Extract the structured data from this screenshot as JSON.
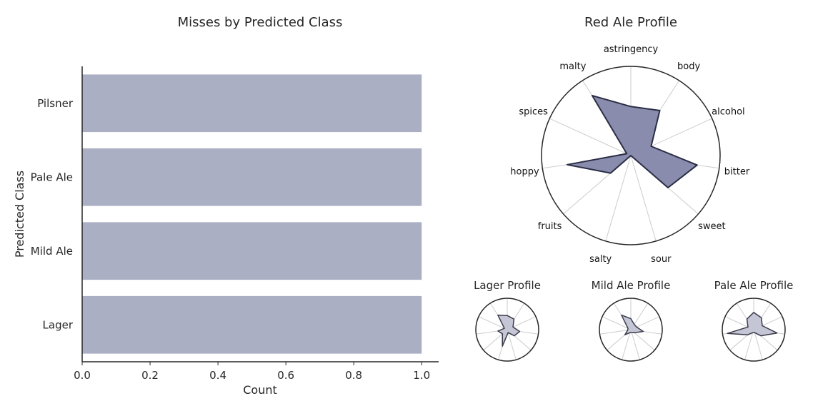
{
  "chart_data": [
    {
      "type": "bar",
      "orientation": "horizontal",
      "title": "Misses by Predicted Class",
      "xlabel": "Count",
      "ylabel": "Predicted Class",
      "categories": [
        "Pilsner",
        "Pale Ale",
        "Mild Ale",
        "Lager"
      ],
      "values": [
        1,
        1,
        1,
        1
      ],
      "xlim": [
        0,
        1.05
      ],
      "xticks": [
        "0.0",
        "0.2",
        "0.4",
        "0.6",
        "0.8",
        "1.0"
      ],
      "bar_color": "#abafc4",
      "grid": false
    },
    {
      "type": "radar",
      "title": "Red Ale Profile",
      "axes": [
        "astringency",
        "body",
        "alcohol",
        "bitter",
        "sweet",
        "sour",
        "salty",
        "fruits",
        "hoppy",
        "spices",
        "malty"
      ],
      "values": [
        0.55,
        0.6,
        0.25,
        0.75,
        0.55,
        0.0,
        0.0,
        0.3,
        0.72,
        0.05,
        0.8
      ],
      "rlim": [
        0,
        1
      ],
      "fill_color": "#8a8cad",
      "line_color": "#2a2d45"
    },
    {
      "type": "radar",
      "title": "Lager Profile",
      "values": [
        0.45,
        0.4,
        0.2,
        0.4,
        0.3,
        0.1,
        0.55,
        0.2,
        0.3,
        0.1,
        0.55
      ],
      "rlim": [
        0,
        1
      ],
      "fill_color": "#c4c6d6",
      "line_color": "#3a3a4a"
    },
    {
      "type": "radar",
      "title": "Mild Ale Profile",
      "values": [
        0.35,
        0.2,
        0.2,
        0.4,
        0.15,
        0.1,
        0.1,
        0.25,
        0.1,
        0.1,
        0.55
      ],
      "rlim": [
        0,
        1
      ],
      "fill_color": "#c4c6d6",
      "line_color": "#3a3a4a"
    },
    {
      "type": "radar",
      "title": "Pale Ale Profile",
      "values": [
        0.55,
        0.45,
        0.3,
        0.75,
        0.3,
        0.1,
        0.1,
        0.25,
        0.85,
        0.2,
        0.4
      ],
      "rlim": [
        0,
        1
      ],
      "fill_color": "#c4c6d6",
      "line_color": "#3a3a4a"
    }
  ]
}
